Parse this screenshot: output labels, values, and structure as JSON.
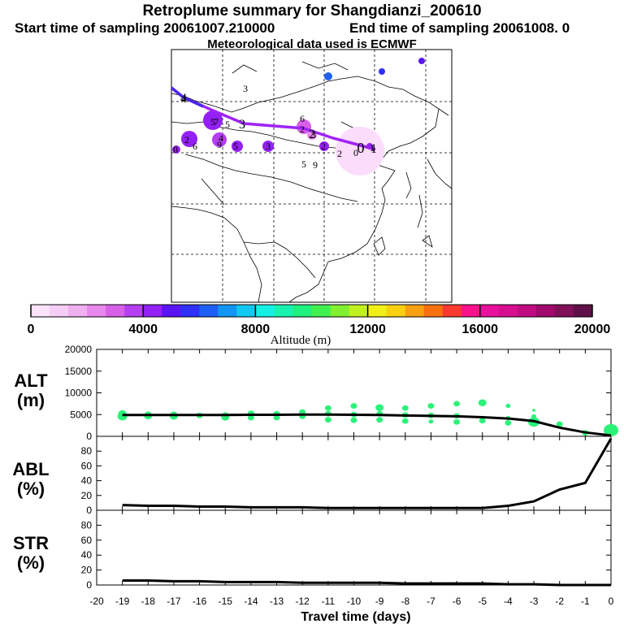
{
  "header": {
    "title": "Retroplume summary for Shangdianzi_200610",
    "start_time": "Start time of sampling 20061007.210000",
    "end_time": "End time of sampling 20061008.     0",
    "met_note": "Meteorological data used is ECMWF"
  },
  "colors": {
    "plume_line": "#9f24f4",
    "plume_line_start": "#4a26f0",
    "scatter": "#2cf27a",
    "curve": "#000000",
    "colorbar": [
      "#fbe3fb",
      "#f6cdf6",
      "#f0b0f0",
      "#e888ec",
      "#d860e8",
      "#b53ef0",
      "#9320f4",
      "#5a14f4",
      "#2e30f8",
      "#1e60f6",
      "#1296f4",
      "#10c8f2",
      "#14f0e4",
      "#18f2b0",
      "#20f080",
      "#40f050",
      "#80f030",
      "#c0f020",
      "#f0f018",
      "#f8d010",
      "#f8a010",
      "#f87010",
      "#f83a30",
      "#f8108c",
      "#e8109c",
      "#d80e90",
      "#c00c80",
      "#a00a6c",
      "#801058",
      "#601048"
    ]
  },
  "map": {
    "trajectory_points": [
      {
        "lon": 116.4,
        "lat": 40.7,
        "label": "0"
      },
      {
        "lon": 112.0,
        "lat": 41.5,
        "label": "1"
      },
      {
        "lon": 104.0,
        "lat": 42.0,
        "label": "2"
      },
      {
        "lon": 90.0,
        "lat": 43.5,
        "label": "3"
      },
      {
        "lon": 75.5,
        "lat": 48.5,
        "label": "4"
      }
    ],
    "labels": [
      "3",
      "4",
      "6",
      "5",
      "7",
      "2",
      "2",
      "3",
      "5",
      "0",
      "0",
      "5",
      "2",
      "1",
      "3",
      "4",
      "9",
      "5",
      "9",
      "2",
      "6"
    ]
  },
  "chart_data": [
    {
      "type": "scatter",
      "name": "ALT",
      "ylabel": "ALT\n(m)",
      "ylim": [
        0,
        20000
      ],
      "yticks": [
        0,
        5000,
        10000,
        15000,
        20000
      ],
      "xlim": [
        -20,
        0
      ],
      "points": [
        {
          "x": -19,
          "y": 4600,
          "s": 6
        },
        {
          "x": -19,
          "y": 5200,
          "s": 5
        },
        {
          "x": -18,
          "y": 4700,
          "s": 5
        },
        {
          "x": -18,
          "y": 5100,
          "s": 4
        },
        {
          "x": -17,
          "y": 4600,
          "s": 5
        },
        {
          "x": -17,
          "y": 5100,
          "s": 4
        },
        {
          "x": -16,
          "y": 4800,
          "s": 4
        },
        {
          "x": -15,
          "y": 4400,
          "s": 5
        },
        {
          "x": -15,
          "y": 4900,
          "s": 4
        },
        {
          "x": -14,
          "y": 4300,
          "s": 4
        },
        {
          "x": -14,
          "y": 5300,
          "s": 4
        },
        {
          "x": -13,
          "y": 4300,
          "s": 4
        },
        {
          "x": -13,
          "y": 5200,
          "s": 4
        },
        {
          "x": -12,
          "y": 4600,
          "s": 4
        },
        {
          "x": -12,
          "y": 5600,
          "s": 4
        },
        {
          "x": -11,
          "y": 3800,
          "s": 4
        },
        {
          "x": -11,
          "y": 5200,
          "s": 4
        },
        {
          "x": -11,
          "y": 6500,
          "s": 4
        },
        {
          "x": -10,
          "y": 3700,
          "s": 4
        },
        {
          "x": -10,
          "y": 5000,
          "s": 4
        },
        {
          "x": -10,
          "y": 7000,
          "s": 4
        },
        {
          "x": -9,
          "y": 3800,
          "s": 4
        },
        {
          "x": -9,
          "y": 5200,
          "s": 4
        },
        {
          "x": -9,
          "y": 6600,
          "s": 5
        },
        {
          "x": -8,
          "y": 3500,
          "s": 4
        },
        {
          "x": -8,
          "y": 4900,
          "s": 4
        },
        {
          "x": -8,
          "y": 6500,
          "s": 4
        },
        {
          "x": -7,
          "y": 3400,
          "s": 3
        },
        {
          "x": -7,
          "y": 4800,
          "s": 4
        },
        {
          "x": -7,
          "y": 7000,
          "s": 4
        },
        {
          "x": -6,
          "y": 3300,
          "s": 4
        },
        {
          "x": -6,
          "y": 4700,
          "s": 4
        },
        {
          "x": -6,
          "y": 7500,
          "s": 4
        },
        {
          "x": -5,
          "y": 3600,
          "s": 4
        },
        {
          "x": -5,
          "y": 7700,
          "s": 5
        },
        {
          "x": -4,
          "y": 3100,
          "s": 4
        },
        {
          "x": -4,
          "y": 4200,
          "s": 3
        },
        {
          "x": -4,
          "y": 7000,
          "s": 3
        },
        {
          "x": -3,
          "y": 3300,
          "s": 7
        },
        {
          "x": -3,
          "y": 4600,
          "s": 3
        },
        {
          "x": -3,
          "y": 6000,
          "s": 2
        },
        {
          "x": -2,
          "y": 2800,
          "s": 4
        },
        {
          "x": -1,
          "y": 800,
          "s": 4
        },
        {
          "x": 0,
          "y": 1400,
          "s": 9
        }
      ],
      "line": {
        "x": [
          -19,
          -18,
          -17,
          -16,
          -15,
          -14,
          -13,
          -12,
          -11,
          -10,
          -9,
          -8,
          -7,
          -6,
          -5,
          -4,
          -3,
          -2,
          -1,
          0
        ],
        "y": [
          4900,
          4900,
          4900,
          4900,
          4900,
          4950,
          4950,
          5000,
          5000,
          4950,
          4900,
          4800,
          4700,
          4600,
          4400,
          4100,
          3500,
          2000,
          900,
          200
        ]
      }
    },
    {
      "type": "line",
      "name": "ABL",
      "ylabel": "ABL\n(%)",
      "ylim": [
        0,
        100
      ],
      "yticks": [
        0,
        20,
        40,
        60,
        80
      ],
      "xlim": [
        -20,
        0
      ],
      "x": [
        -19,
        -18,
        -17,
        -16,
        -15,
        -14,
        -13,
        -12,
        -11,
        -10,
        -9,
        -8,
        -7,
        -6,
        -5,
        -4,
        -3,
        -2,
        -1,
        0
      ],
      "y": [
        7,
        6,
        6,
        5,
        5,
        4,
        4,
        4,
        3,
        3,
        3,
        3,
        3,
        3,
        3,
        6,
        12,
        28,
        37,
        97
      ]
    },
    {
      "type": "line",
      "name": "STR",
      "ylabel": "STR\n(%)",
      "ylim": [
        0,
        100
      ],
      "yticks": [
        0,
        20,
        40,
        60,
        80
      ],
      "xlim": [
        -20,
        0
      ],
      "xlabel": "Travel time (days)",
      "xticks": [
        -20,
        -19,
        -18,
        -17,
        -16,
        -15,
        -14,
        -13,
        -12,
        -11,
        -10,
        -9,
        -8,
        -7,
        -6,
        -5,
        -4,
        -3,
        -2,
        -1,
        0
      ],
      "x": [
        -19,
        -18,
        -17,
        -16,
        -15,
        -14,
        -13,
        -12,
        -11,
        -10,
        -9,
        -8,
        -7,
        -6,
        -5,
        -4,
        -3,
        -2,
        -1,
        0
      ],
      "y": [
        6,
        6,
        5,
        5,
        4,
        4,
        4,
        3,
        3,
        3,
        3,
        2,
        2,
        2,
        2,
        1,
        1,
        0,
        0,
        0
      ]
    }
  ],
  "colorbar": {
    "ticks": [
      0,
      4000,
      8000,
      12000,
      16000,
      20000
    ],
    "label": "Altitude (m)"
  }
}
